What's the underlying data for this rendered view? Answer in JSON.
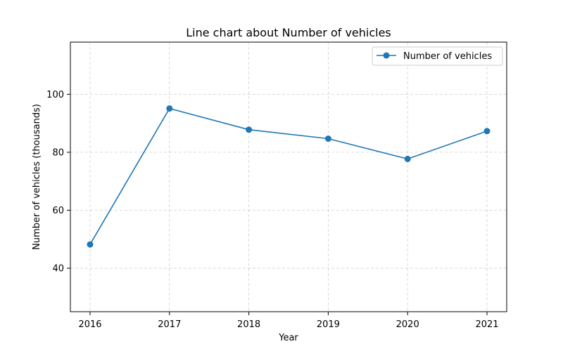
{
  "chart_data": {
    "type": "line",
    "title": "Line chart about Number of vehicles",
    "xlabel": "Year",
    "ylabel": "Number of vehicles (thousands)",
    "x": [
      "2016",
      "2017",
      "2018",
      "2019",
      "2020",
      "2021"
    ],
    "series": [
      {
        "name": "Number of vehicles",
        "values": [
          48.2,
          95.1,
          87.8,
          84.7,
          77.7,
          87.3
        ],
        "color": "#1f77b4"
      }
    ],
    "ylim": [
      25,
      118
    ],
    "yticks": [
      40,
      60,
      80,
      100
    ],
    "grid": true,
    "legend_position": "top-right"
  }
}
